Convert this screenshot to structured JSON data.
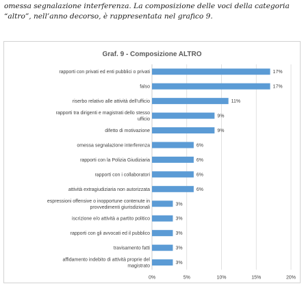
{
  "intro": {
    "line1": "omessa segnalazione interferenza. La composizione delle voci della categoria",
    "line2": "“altro”, nell’anno decorso, è rappresentata nel grafico 9."
  },
  "colors": {
    "bar": "#5b9bd5",
    "grid": "#d9d9d9",
    "axis": "#bfbfbf"
  },
  "chart_data": {
    "type": "bar",
    "orientation": "horizontal",
    "title": "Graf. 9 - Composizione ALTRO",
    "categories": [
      "rapporti con privati ed enti pubblici o privati",
      "falso",
      "riserbo relativo alle attività dell'ufficio",
      "rapporti tra dirigenti e magistrati dello stesso ufficio",
      "difetto di motivazione",
      "omessa segnalazione interferenza",
      "rapporti con la Polizia Giudiziaria",
      "rapporti con i collaboratori",
      "attività extragiudiziaria non autorizzata",
      "espressioni offensive o inopportune contenute in provvedimenti giurisdizionali",
      "iscrizione e/o attività a partito politico",
      "rapporti con gli avvocati ed il pubblico",
      "travisamento fatti",
      "affidamento indebito di attività proprie del magistrato"
    ],
    "values": [
      17,
      17,
      11,
      9,
      9,
      6,
      6,
      6,
      6,
      3,
      3,
      3,
      3,
      3
    ],
    "value_labels": [
      "17%",
      "17%",
      "11%",
      "9%",
      "9%",
      "6%",
      "6%",
      "6%",
      "6%",
      "3%",
      "3%",
      "3%",
      "3%",
      "3%"
    ],
    "xticks": [
      "0%",
      "5%",
      "10%",
      "15%",
      "20%"
    ],
    "xlim": [
      0,
      20
    ],
    "xlabel": "",
    "ylabel": "",
    "grid": true,
    "legend": "none"
  }
}
